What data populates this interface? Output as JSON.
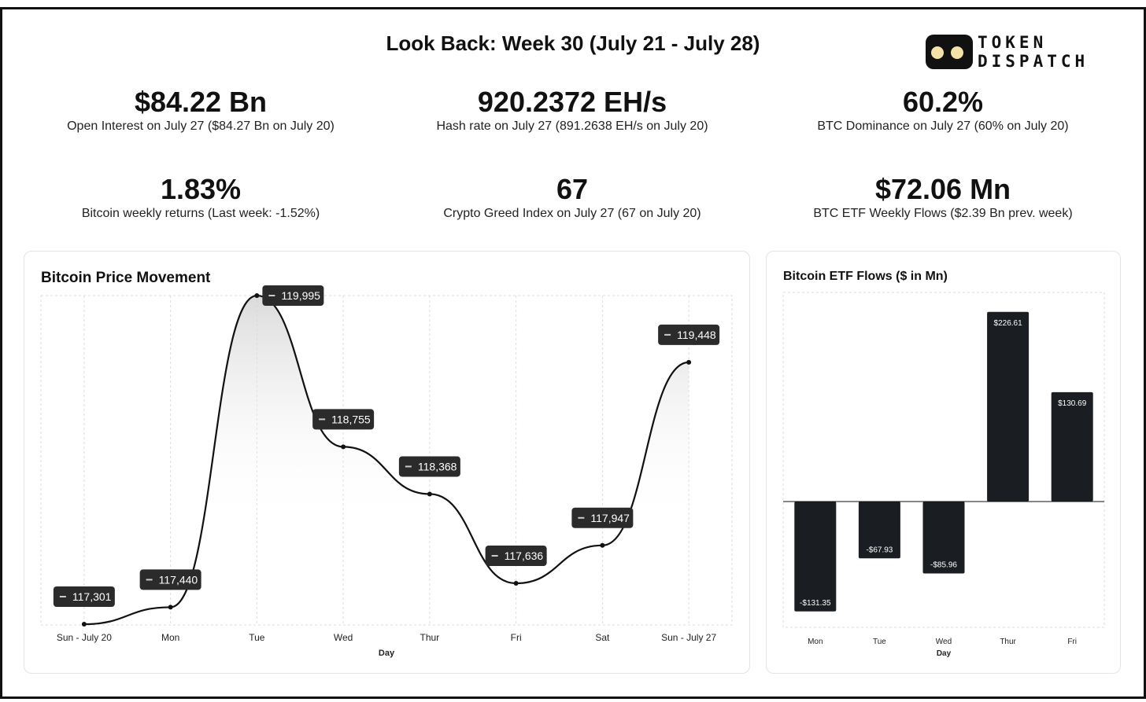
{
  "header": {
    "title": "Look Back: Week 30 (July 21 - July 28)",
    "logo_lines": [
      "TOKEN",
      "DISPATCH"
    ]
  },
  "stats": [
    {
      "value": "$84.22 Bn",
      "label": "Open Interest on July 27 ($84.27 Bn on July 20)"
    },
    {
      "value": "920.2372 EH/s",
      "label": "Hash rate on July 27 (891.2638 EH/s on July 20)"
    },
    {
      "value": "60.2%",
      "label": "BTC Dominance on July 27 (60% on July 20)"
    },
    {
      "value": "1.83%",
      "label": "Bitcoin weekly returns (Last week: -1.52%)"
    },
    {
      "value": "67",
      "label": "Crypto Greed Index on July 27 (67 on July 20)"
    },
    {
      "value": "$72.06 Mn",
      "label": "BTC ETF Weekly Flows ($2.39 Bn prev. week)"
    }
  ],
  "colors": {
    "ink": "#111111",
    "tooltip": "#2b2b2b",
    "bar": "#1a1d21",
    "grid": "#dedede"
  },
  "chart_data": [
    {
      "type": "area",
      "title": "Bitcoin Price Movement",
      "xlabel": "Day",
      "ylabel": "",
      "categories": [
        "Sun - July 20",
        "Mon",
        "Tue",
        "Wed",
        "Thur",
        "Fri",
        "Sat",
        "Sun - July 27"
      ],
      "values": [
        117301,
        117440,
        119995,
        118755,
        118368,
        117636,
        117947,
        119448
      ],
      "data_labels": [
        "117,301",
        "117,440",
        "119,995",
        "118,755",
        "118,368",
        "117,636",
        "117,947",
        "119,448"
      ],
      "ylim": [
        117301,
        119995
      ],
      "grid": true
    },
    {
      "type": "bar",
      "title": "Bitcoin ETF Flows ($ in Mn)",
      "xlabel": "Day",
      "ylabel": "",
      "categories": [
        "Mon",
        "Tue",
        "Wed",
        "Thur",
        "Fri"
      ],
      "values": [
        -131.35,
        -67.93,
        -85.96,
        226.61,
        130.69
      ],
      "data_labels": [
        "-$131.35",
        "-$67.93",
        "-$85.96",
        "$226.61",
        "$130.69"
      ],
      "ylim": [
        -131.35,
        226.61
      ],
      "grid": true
    }
  ]
}
